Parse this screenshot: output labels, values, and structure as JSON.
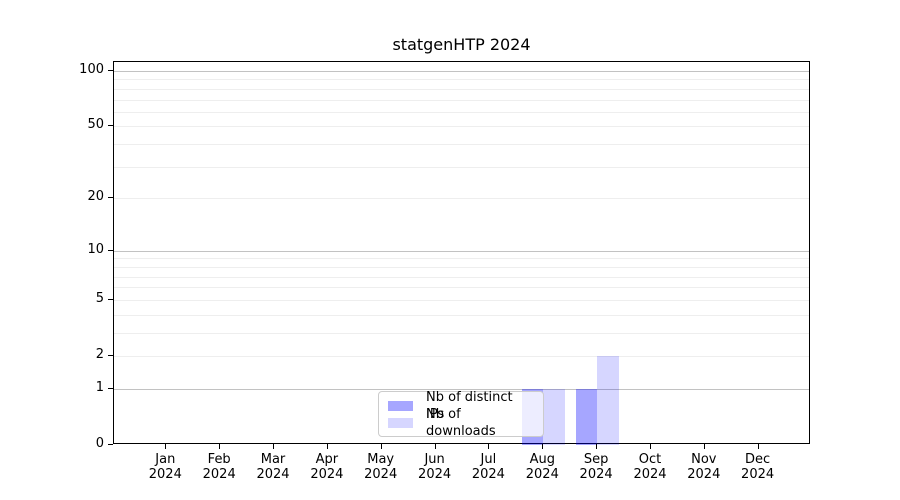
{
  "title": "statgenHTP 2024",
  "chart_data": {
    "type": "bar",
    "title": "statgenHTP 2024",
    "categories": [
      "Jan",
      "Feb",
      "Mar",
      "Apr",
      "May",
      "Jun",
      "Jul",
      "Aug",
      "Sep",
      "Oct",
      "Nov",
      "Dec"
    ],
    "year_label": "2024",
    "series": [
      {
        "name": "Nb of distinct IPs",
        "color": "#0000ff",
        "alpha": 0.35,
        "values": [
          0,
          0,
          0,
          0,
          0,
          0,
          0,
          1,
          1,
          0,
          0,
          0
        ]
      },
      {
        "name": "Nb of downloads",
        "color": "#0000ff",
        "alpha": 0.16,
        "values": [
          0,
          0,
          0,
          0,
          0,
          0,
          0,
          1,
          2,
          0,
          0,
          0
        ]
      }
    ],
    "yscale": "log1p",
    "ylim": [
      0,
      100
    ],
    "ytick_values": [
      0,
      1,
      2,
      5,
      10,
      20,
      50,
      100
    ],
    "major_gridlines": [
      1,
      10,
      100
    ],
    "minor_gridlines": [
      2,
      3,
      4,
      5,
      6,
      7,
      8,
      9,
      20,
      30,
      40,
      50,
      60,
      70,
      80,
      90
    ],
    "legend_position": "lower center, inside plot",
    "grid_on": true,
    "colors": {
      "major_grid": "#c2c2c2",
      "minor_grid": "#eeeeee",
      "spine": "#000000",
      "text": "#000000",
      "background": "#ffffff"
    }
  }
}
